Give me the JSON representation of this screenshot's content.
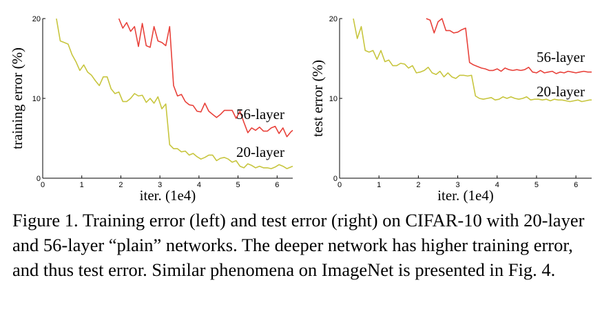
{
  "colors": {
    "red_series": "#e8413a",
    "olive_series": "#c7c53d",
    "axis": "#000000"
  },
  "caption": "Figure 1. Training error (left) and test error (right) on CIFAR-10 with 20-layer and 56-layer “plain” networks. The deeper network has higher training error, and thus test error. Similar phenomena on ImageNet is presented in Fig. 4.",
  "chart_data": [
    {
      "type": "line",
      "xlabel": "iter. (1e4)",
      "ylabel": "training error (%)",
      "xlim": [
        0,
        6.4
      ],
      "ylim": [
        0,
        20
      ],
      "xticks": [
        "0",
        "1",
        "2",
        "3",
        "4",
        "5",
        "6"
      ],
      "yticks": [
        "0",
        "10",
        "20"
      ],
      "grid": false,
      "series": [
        {
          "name": "56-layer",
          "color": "#e8413a",
          "x": [
            1.95,
            2.05,
            2.15,
            2.25,
            2.35,
            2.45,
            2.55,
            2.65,
            2.75,
            2.85,
            2.95,
            3.05,
            3.15,
            3.25,
            3.35,
            3.45,
            3.55,
            3.65,
            3.75,
            3.85,
            3.95,
            4.05,
            4.15,
            4.25,
            4.35,
            4.45,
            4.55,
            4.65,
            4.75,
            4.85,
            4.95,
            5.05,
            5.15,
            5.25,
            5.35,
            5.45,
            5.55,
            5.65,
            5.75,
            5.85,
            5.95,
            6.05,
            6.15,
            6.25,
            6.35,
            6.4
          ],
          "y": [
            20,
            18.8,
            19.5,
            18.4,
            19.0,
            16.5,
            19.4,
            16.6,
            16.4,
            19.0,
            17.2,
            17.0,
            16.6,
            19.0,
            11.6,
            10.3,
            10.5,
            9.6,
            9.2,
            9.1,
            8.4,
            8.3,
            9.4,
            8.4,
            8.0,
            7.6,
            8.0,
            8.5,
            8.5,
            8.5,
            7.5,
            8.4,
            7.0,
            5.7,
            6.3,
            6.0,
            6.4,
            5.9,
            5.9,
            6.3,
            6.5,
            5.6,
            6.3,
            5.2,
            5.8,
            6.0
          ]
        },
        {
          "name": "20-layer",
          "color": "#c7c53d",
          "x": [
            0.35,
            0.45,
            0.55,
            0.65,
            0.75,
            0.85,
            0.95,
            1.05,
            1.15,
            1.25,
            1.35,
            1.45,
            1.55,
            1.65,
            1.75,
            1.85,
            1.95,
            2.05,
            2.15,
            2.25,
            2.35,
            2.45,
            2.55,
            2.65,
            2.75,
            2.85,
            2.95,
            3.05,
            3.15,
            3.25,
            3.35,
            3.45,
            3.55,
            3.65,
            3.75,
            3.85,
            3.95,
            4.05,
            4.15,
            4.25,
            4.35,
            4.45,
            4.55,
            4.65,
            4.75,
            4.85,
            4.95,
            5.05,
            5.15,
            5.25,
            5.35,
            5.45,
            5.55,
            5.65,
            5.75,
            5.85,
            5.95,
            6.05,
            6.15,
            6.25,
            6.35,
            6.4
          ],
          "y": [
            20,
            17.2,
            17.0,
            16.8,
            15.5,
            14.6,
            13.5,
            14.2,
            13.3,
            12.9,
            12.2,
            11.6,
            12.7,
            12.7,
            11.2,
            10.6,
            10.8,
            9.6,
            9.6,
            10.0,
            10.6,
            10.3,
            10.4,
            9.5,
            10.0,
            9.4,
            10.2,
            8.7,
            9.3,
            4.2,
            3.7,
            3.7,
            3.3,
            3.4,
            2.9,
            3.1,
            2.7,
            2.4,
            2.6,
            2.9,
            2.9,
            2.2,
            2.5,
            2.6,
            2.4,
            2.0,
            2.2,
            1.5,
            1.3,
            1.8,
            1.6,
            1.3,
            1.5,
            1.3,
            1.3,
            1.2,
            1.4,
            1.7,
            1.5,
            1.2,
            1.4,
            1.5
          ]
        }
      ]
    },
    {
      "type": "line",
      "xlabel": "iter. (1e4)",
      "ylabel": "test error (%)",
      "xlim": [
        0,
        6.4
      ],
      "ylim": [
        0,
        20
      ],
      "xticks": [
        "0",
        "1",
        "2",
        "3",
        "4",
        "5",
        "6"
      ],
      "yticks": [
        "0",
        "10",
        "20"
      ],
      "grid": false,
      "series": [
        {
          "name": "56-layer",
          "color": "#e8413a",
          "x": [
            2.2,
            2.3,
            2.4,
            2.5,
            2.6,
            2.7,
            2.8,
            2.9,
            3.0,
            3.1,
            3.2,
            3.3,
            3.4,
            3.5,
            3.6,
            3.7,
            3.8,
            3.9,
            4.0,
            4.1,
            4.2,
            4.3,
            4.4,
            4.5,
            4.6,
            4.7,
            4.8,
            4.9,
            5.0,
            5.1,
            5.2,
            5.3,
            5.4,
            5.5,
            5.6,
            5.7,
            5.8,
            5.9,
            6.0,
            6.1,
            6.2,
            6.3,
            6.4
          ],
          "y": [
            20,
            19.8,
            18.2,
            19.6,
            20.0,
            18.5,
            18.5,
            18.2,
            18.3,
            18.6,
            18.8,
            14.5,
            14.2,
            14.0,
            13.8,
            13.7,
            13.5,
            13.5,
            13.7,
            13.4,
            13.8,
            13.6,
            13.5,
            13.6,
            13.5,
            13.6,
            13.9,
            13.3,
            13.2,
            13.5,
            13.2,
            13.3,
            13.4,
            13.1,
            13.3,
            13.2,
            13.4,
            13.3,
            13.2,
            13.3,
            13.4,
            13.3,
            13.3
          ]
        },
        {
          "name": "20-layer",
          "color": "#c7c53d",
          "x": [
            0.35,
            0.45,
            0.55,
            0.65,
            0.75,
            0.85,
            0.95,
            1.05,
            1.15,
            1.25,
            1.35,
            1.45,
            1.55,
            1.65,
            1.75,
            1.85,
            1.95,
            2.05,
            2.15,
            2.25,
            2.35,
            2.45,
            2.55,
            2.65,
            2.75,
            2.85,
            2.95,
            3.05,
            3.15,
            3.25,
            3.35,
            3.45,
            3.55,
            3.65,
            3.75,
            3.85,
            3.95,
            4.05,
            4.15,
            4.25,
            4.35,
            4.45,
            4.55,
            4.65,
            4.75,
            4.85,
            4.95,
            5.05,
            5.15,
            5.25,
            5.35,
            5.45,
            5.55,
            5.65,
            5.75,
            5.85,
            5.95,
            6.05,
            6.15,
            6.25,
            6.35,
            6.4
          ],
          "y": [
            20,
            17.5,
            19.0,
            16.0,
            15.8,
            16.0,
            14.9,
            16.0,
            14.6,
            14.8,
            14.1,
            14.1,
            14.4,
            14.3,
            13.8,
            14.1,
            13.2,
            13.3,
            13.5,
            13.9,
            13.2,
            13.0,
            13.4,
            12.7,
            13.2,
            12.7,
            12.5,
            12.9,
            12.9,
            12.8,
            12.9,
            10.3,
            10.0,
            9.9,
            10.0,
            10.1,
            9.8,
            9.9,
            10.2,
            10.0,
            10.2,
            10.0,
            9.9,
            10.0,
            10.2,
            9.8,
            9.9,
            9.9,
            9.8,
            9.9,
            9.7,
            9.9,
            9.8,
            9.8,
            9.7,
            9.6,
            9.7,
            9.8,
            9.6,
            9.7,
            9.8,
            9.8
          ]
        }
      ]
    }
  ]
}
